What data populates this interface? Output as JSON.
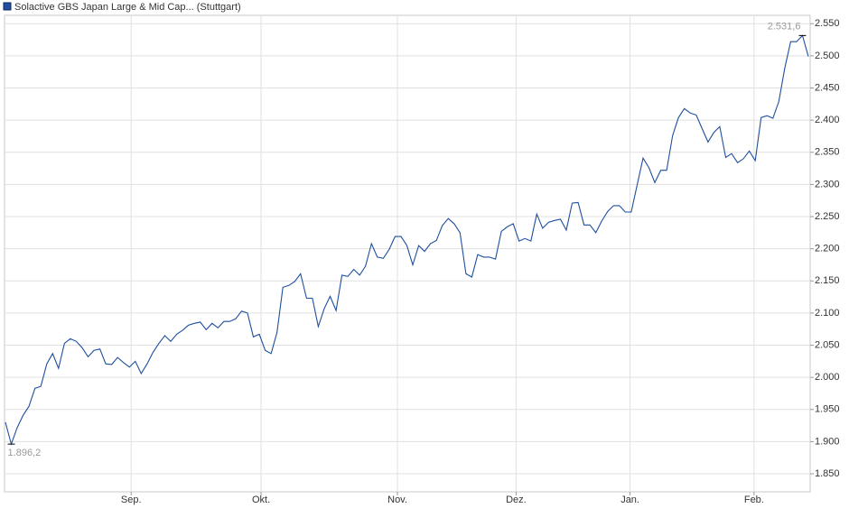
{
  "chart_data": {
    "type": "line",
    "series": [
      {
        "name": "Solactive GBS Japan Large & Mid Cap... (Stuttgart)",
        "color": "#1f4f9e",
        "values": [
          1930,
          1896.2,
          1922,
          1941,
          1955,
          1983,
          1986,
          2021,
          2037,
          2014,
          2053,
          2060,
          2056,
          2046,
          2032,
          2042,
          2044,
          2021,
          2020,
          2031,
          2023,
          2016,
          2025,
          2006,
          2021,
          2039,
          2053,
          2065,
          2056,
          2067,
          2073,
          2081,
          2084,
          2086,
          2074,
          2084,
          2077,
          2087,
          2087,
          2091,
          2103,
          2100,
          2063,
          2067,
          2042,
          2037,
          2070,
          2140,
          2143,
          2149,
          2161,
          2123,
          2123,
          2079,
          2107,
          2126,
          2104,
          2159,
          2157,
          2168,
          2159,
          2173,
          2208,
          2187,
          2185,
          2199,
          2219,
          2219,
          2205,
          2175,
          2205,
          2196,
          2208,
          2213,
          2236,
          2247,
          2239,
          2225,
          2161,
          2156,
          2191,
          2187,
          2187,
          2184,
          2227,
          2234,
          2239,
          2212,
          2216,
          2212,
          2254,
          2232,
          2241,
          2244,
          2246,
          2229,
          2271,
          2272,
          2237,
          2237,
          2225,
          2243,
          2258,
          2267,
          2267,
          2257,
          2257,
          2299,
          2341,
          2326,
          2303,
          2322,
          2322,
          2376,
          2404,
          2418,
          2411,
          2408,
          2387,
          2366,
          2381,
          2390,
          2342,
          2348,
          2334,
          2340,
          2352,
          2337,
          2404,
          2407,
          2403,
          2429,
          2481,
          2522,
          2522,
          2531.6,
          2499
        ]
      }
    ],
    "max_label": "2.531,6",
    "min_label": "1.896,2",
    "xlim": [
      0,
      136
    ],
    "xticks": [
      {
        "value": 21.3,
        "label": "Sep."
      },
      {
        "value": 43.3,
        "label": "Okt."
      },
      {
        "value": 66.4,
        "label": "Nov."
      },
      {
        "value": 86.5,
        "label": "Dez."
      },
      {
        "value": 105.8,
        "label": "Jan."
      },
      {
        "value": 126.8,
        "label": "Feb."
      }
    ],
    "ylim": [
      1822,
      2563
    ],
    "yticks": [
      {
        "value": 1850,
        "label": "1.850"
      },
      {
        "value": 1900,
        "label": "1.900"
      },
      {
        "value": 1950,
        "label": "1.950"
      },
      {
        "value": 2000,
        "label": "2.000"
      },
      {
        "value": 2050,
        "label": "2.050"
      },
      {
        "value": 2100,
        "label": "2.100"
      },
      {
        "value": 2150,
        "label": "2.150"
      },
      {
        "value": 2200,
        "label": "2.200"
      },
      {
        "value": 2250,
        "label": "2.250"
      },
      {
        "value": 2300,
        "label": "2.300"
      },
      {
        "value": 2350,
        "label": "2.350"
      },
      {
        "value": 2400,
        "label": "2.400"
      },
      {
        "value": 2450,
        "label": "2.450"
      },
      {
        "value": 2500,
        "label": "2.500"
      },
      {
        "value": 2550,
        "label": "2.550"
      }
    ],
    "grid": true
  }
}
